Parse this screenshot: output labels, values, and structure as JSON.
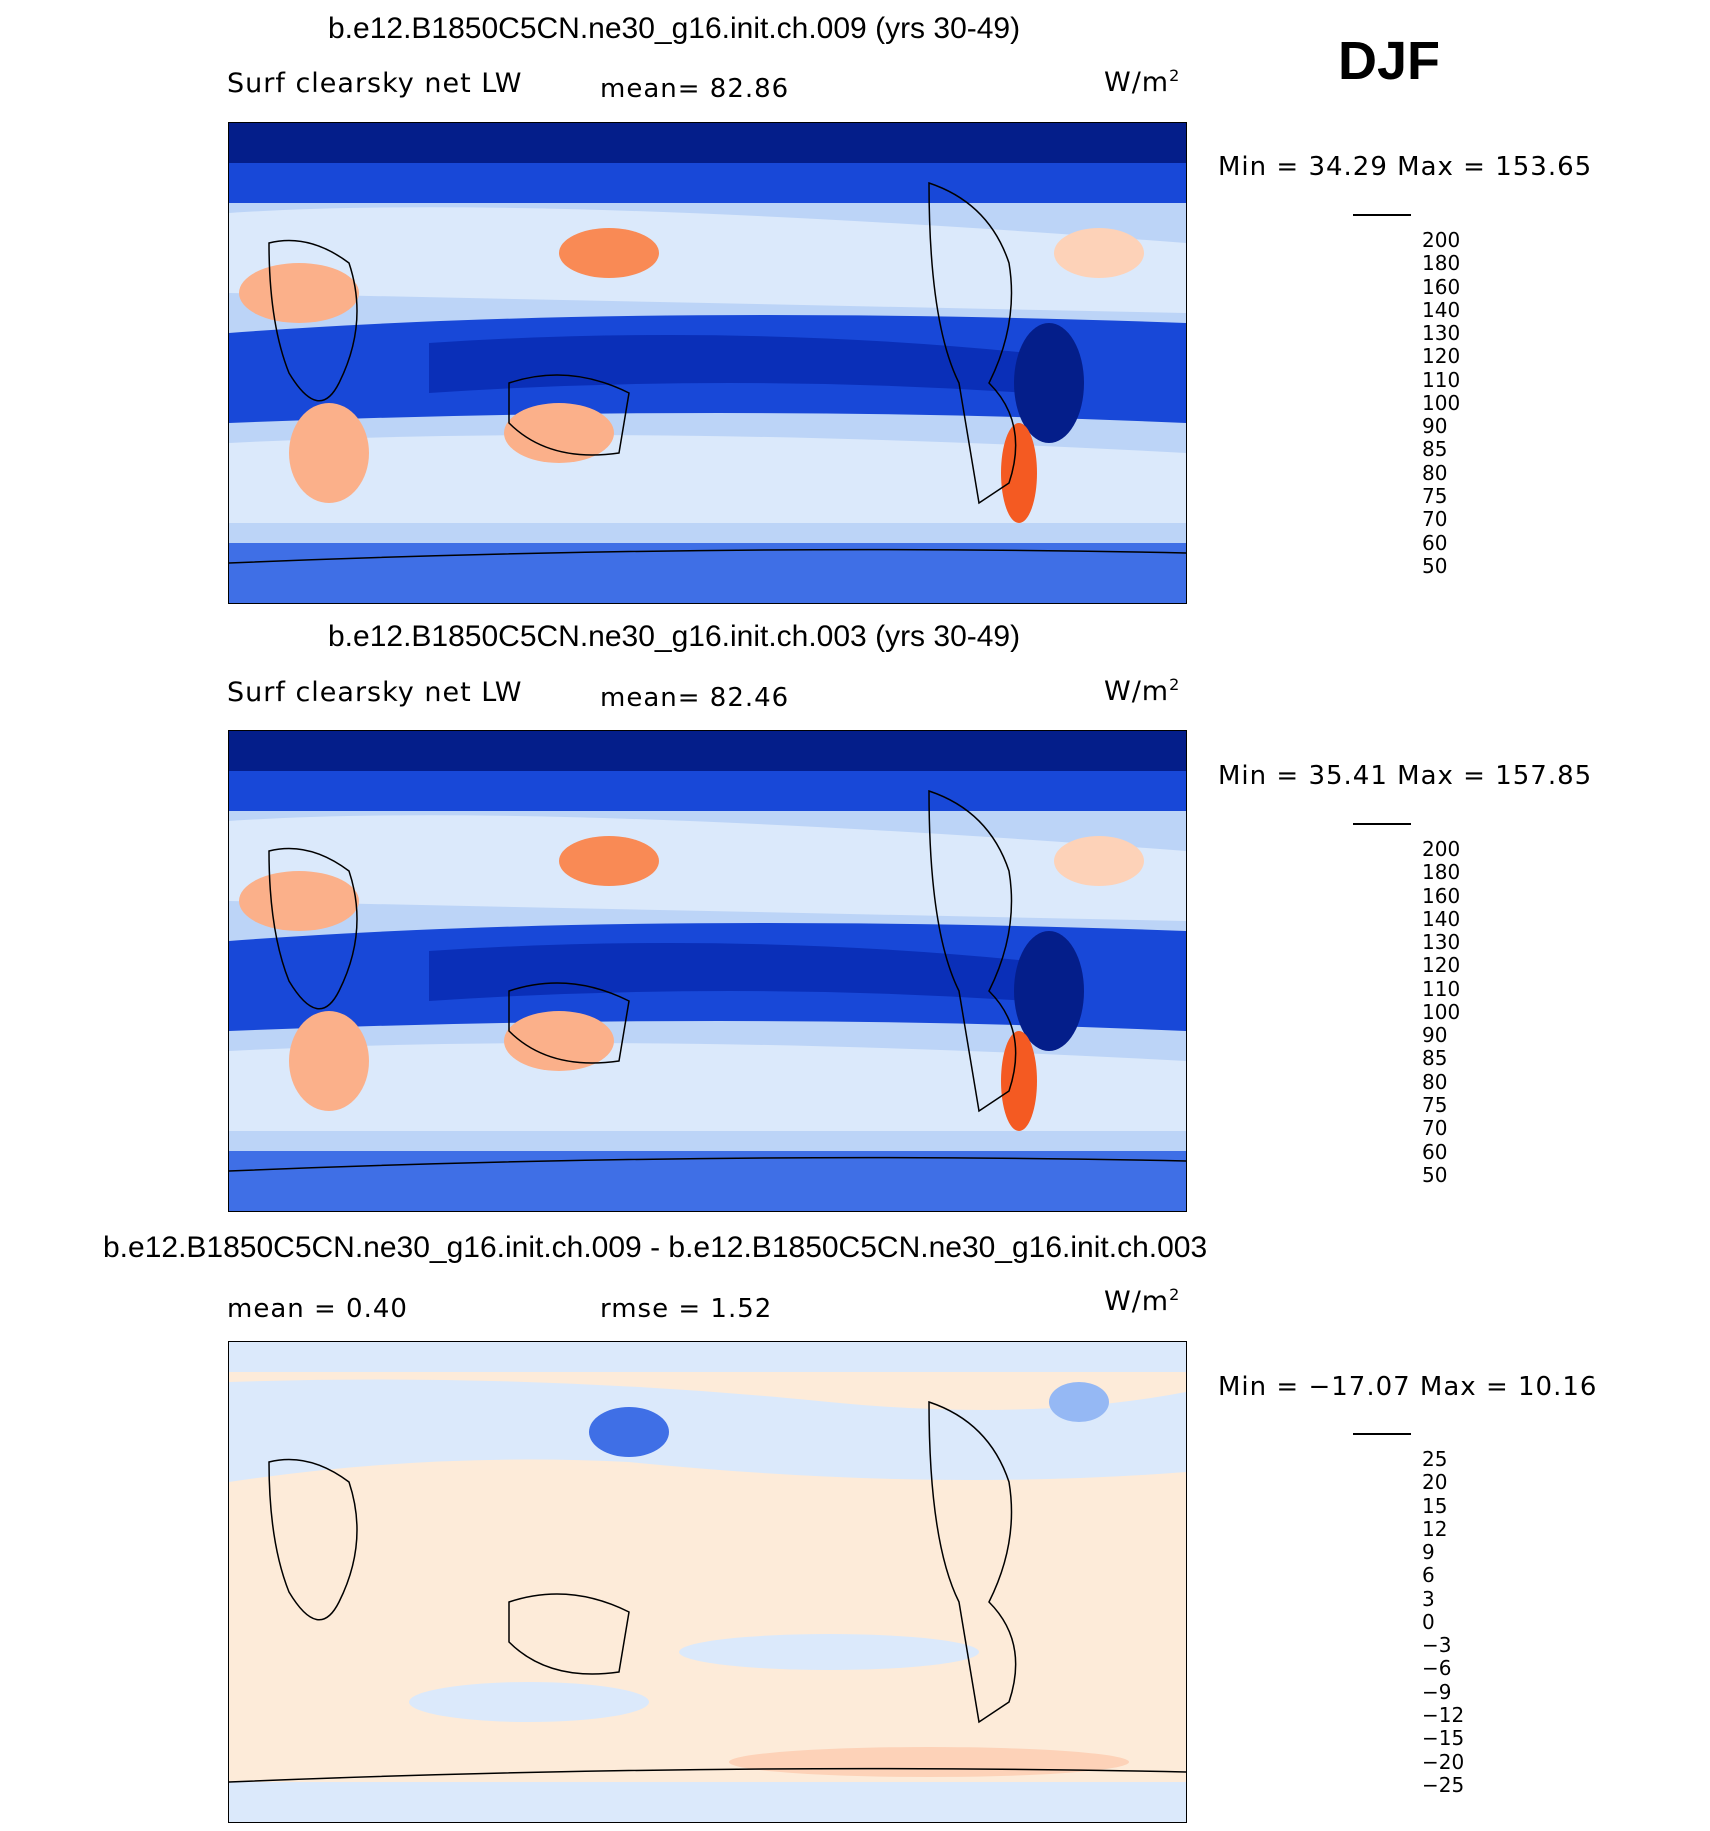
{
  "season": "DJF",
  "panels": [
    {
      "title": "b.e12.B1850C5CN.ne30_g16.init.ch.009 (yrs 30-49)",
      "variable": "Surf clearsky net LW",
      "stat1": "mean=   82.86",
      "stat2": "",
      "units": "W/m",
      "units_sup": "2",
      "minmax": "Min =   34.29  Max  =  153.65",
      "colorbar_ticks": [
        "200",
        "180",
        "160",
        "140",
        "130",
        "120",
        "110",
        "100",
        "90",
        "85",
        "80",
        "75",
        "70",
        "60",
        "50"
      ],
      "colorbar_colors": [
        "#7e0000",
        "#b51d00",
        "#d83a0a",
        "#f45a22",
        "#f98a55",
        "#fbb08a",
        "#fdd2b8",
        "#fdebd9",
        "#dbe9fb",
        "#bcd4f7",
        "#95b8f4",
        "#6b96f0",
        "#3f6fe6",
        "#1848d8",
        "#0a2fb8",
        "#041e8a",
        "#030d6c"
      ]
    },
    {
      "title": "b.e12.B1850C5CN.ne30_g16.init.ch.003 (yrs 30-49)",
      "variable": "Surf clearsky net LW",
      "stat1": "mean=   82.46",
      "stat2": "",
      "units": "W/m",
      "units_sup": "2",
      "minmax": "Min =   35.41  Max  =  157.85",
      "colorbar_ticks": [
        "200",
        "180",
        "160",
        "140",
        "130",
        "120",
        "110",
        "100",
        "90",
        "85",
        "80",
        "75",
        "70",
        "60",
        "50"
      ],
      "colorbar_colors": [
        "#7e0000",
        "#b51d00",
        "#d83a0a",
        "#f45a22",
        "#f98a55",
        "#fbb08a",
        "#fdd2b8",
        "#fdebd9",
        "#dbe9fb",
        "#bcd4f7",
        "#95b8f4",
        "#6b96f0",
        "#3f6fe6",
        "#1848d8",
        "#0a2fb8",
        "#041e8a",
        "#030d6c"
      ]
    },
    {
      "title": "b.e12.B1850C5CN.ne30_g16.init.ch.009 - b.e12.B1850C5CN.ne30_g16.init.ch.003",
      "variable": "",
      "stat1": "mean =     0.40",
      "stat2": "rmse =     1.52",
      "units": "W/m",
      "units_sup": "2",
      "minmax": "Min =  −17.07  Max  =    10.16",
      "colorbar_ticks": [
        "25",
        "20",
        "15",
        "12",
        "9",
        "6",
        "3",
        "0",
        "−3",
        "−6",
        "−9",
        "−12",
        "−15",
        "−20",
        "−25"
      ],
      "colorbar_colors": [
        "#7e0000",
        "#b51d00",
        "#d83a0a",
        "#f45a22",
        "#f98a55",
        "#fbb08a",
        "#fdd2b8",
        "#fdebd9",
        "#dbe9fb",
        "#bcd4f7",
        "#95b8f4",
        "#6b96f0",
        "#3f6fe6",
        "#1848d8",
        "#0a2fb8",
        "#041e8a",
        "#030d6c"
      ]
    }
  ]
}
